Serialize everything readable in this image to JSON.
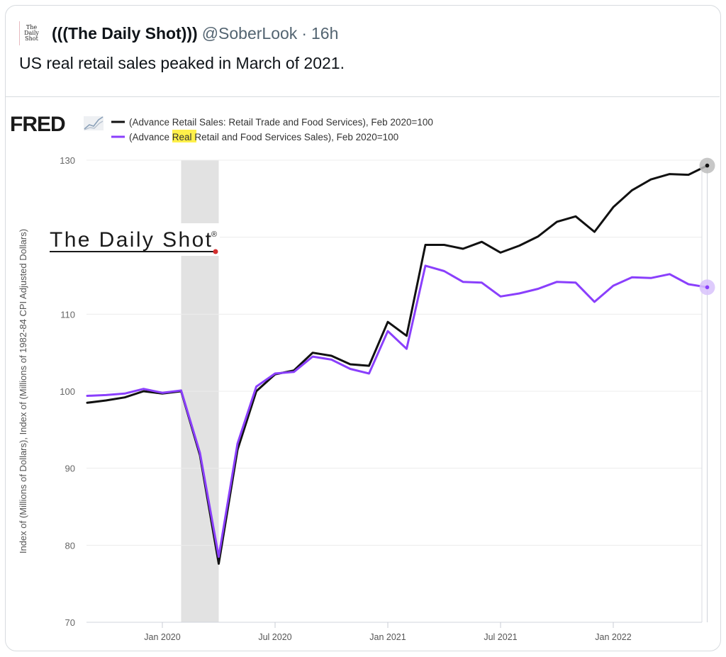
{
  "tweet": {
    "avatar_lines": [
      "The",
      "Daily",
      "Shot"
    ],
    "display_name": "(((The Daily Shot)))",
    "handle": "@SoberLook",
    "separator": "·",
    "time": "16h",
    "text": "US real retail sales peaked in March of 2021."
  },
  "branding": {
    "fred_logo": "FRED",
    "fred_icon": "chart-line-icon",
    "watermark": "The Daily Shot",
    "watermark_mark": "®"
  },
  "colors": {
    "nominal": "#111111",
    "real": "#8a3ffc",
    "recession": "#e2e2e2",
    "highlight": "#fff04a",
    "grid": "#ececec"
  },
  "chart_data": {
    "type": "line",
    "title": "",
    "xlabel": "",
    "ylabel": "Index of (Millions of Dollars), Index of (Millions of 1982-84 CPI Adjusted Dollars)",
    "ylim": [
      70,
      130
    ],
    "yticks": [
      70,
      80,
      90,
      100,
      110,
      120,
      130
    ],
    "ytick_labels": [
      "70",
      "80",
      "90",
      "100",
      "110",
      "",
      "130"
    ],
    "xticks": [
      {
        "label": "Jan 2020",
        "index": 4
      },
      {
        "label": "Jul 2020",
        "index": 10
      },
      {
        "label": "Jan 2021",
        "index": 16
      },
      {
        "label": "Jul 2021",
        "index": 22
      },
      {
        "label": "Jan 2022",
        "index": 28
      }
    ],
    "grid": true,
    "legend_position": "top-left",
    "recession": {
      "start_index": 5,
      "end_index": 7,
      "label": "Recession"
    },
    "x": [
      "Sep 2019",
      "Oct 2019",
      "Nov 2019",
      "Dec 2019",
      "Jan 2020",
      "Feb 2020",
      "Mar 2020",
      "Apr 2020",
      "May 2020",
      "Jun 2020",
      "Jul 2020",
      "Aug 2020",
      "Sep 2020",
      "Oct 2020",
      "Nov 2020",
      "Dec 2020",
      "Jan 2021",
      "Feb 2021",
      "Mar 2021",
      "Apr 2021",
      "May 2021",
      "Jun 2021",
      "Jul 2021",
      "Aug 2021",
      "Sep 2021",
      "Oct 2021",
      "Nov 2021",
      "Dec 2021",
      "Jan 2022",
      "Feb 2022",
      "Mar 2022",
      "Apr 2022",
      "May 2022",
      "Jun 2022"
    ],
    "series": [
      {
        "name": "(Advance Retail Sales: Retail Trade and Food Services), Feb 2020=100",
        "color": "#111111",
        "values": [
          98.5,
          98.8,
          99.2,
          100.0,
          99.7,
          100.0,
          91.7,
          77.6,
          92.4,
          100.0,
          102.2,
          102.7,
          105.0,
          104.6,
          103.5,
          103.3,
          109.0,
          107.2,
          119.0,
          119.0,
          118.5,
          119.4,
          118.0,
          118.9,
          120.1,
          122.0,
          122.7,
          120.7,
          123.9,
          126.1,
          127.5,
          128.2,
          128.1,
          129.3
        ]
      },
      {
        "name": "(Advance Real Retail and Food Services Sales), Feb 2020=100",
        "name_parts": [
          "(Advance ",
          "Real",
          " Retail and Food Services Sales), Feb 2020=100"
        ],
        "color": "#8a3ffc",
        "values": [
          99.4,
          99.5,
          99.7,
          100.3,
          99.8,
          100.1,
          92.0,
          78.5,
          93.2,
          100.6,
          102.3,
          102.5,
          104.5,
          104.1,
          102.9,
          102.3,
          107.8,
          105.5,
          116.3,
          115.6,
          114.2,
          114.1,
          112.3,
          112.7,
          113.3,
          114.2,
          114.1,
          111.6,
          113.7,
          114.8,
          114.7,
          115.2,
          113.9,
          113.5
        ]
      }
    ]
  }
}
